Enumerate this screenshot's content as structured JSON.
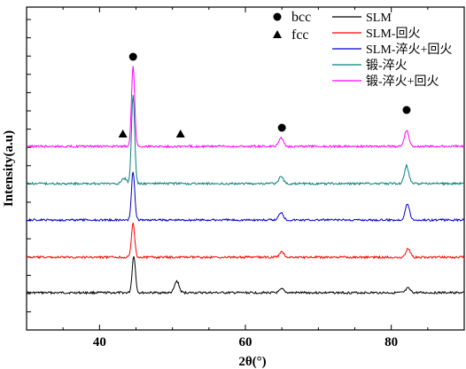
{
  "chart_data": {
    "type": "line",
    "title": "",
    "xlabel": "2θ(°)",
    "ylabel": "Intensity(a.u)",
    "xlim": [
      30,
      90
    ],
    "x_ticks": [
      40,
      60,
      80
    ],
    "grid": false,
    "legend_position": "top-right",
    "phase_legend": [
      {
        "symbol": "circle",
        "label": "bcc"
      },
      {
        "symbol": "triangle",
        "label": "fcc"
      }
    ],
    "series": [
      {
        "name": "SLM",
        "color": "#000000",
        "baseline": 0,
        "peaks": [
          {
            "x": 44.7,
            "height": 42
          },
          {
            "x": 50.6,
            "height": 13
          },
          {
            "x": 65.0,
            "height": 4
          },
          {
            "x": 82.3,
            "height": 5
          }
        ]
      },
      {
        "name": "SLM-回火",
        "color": "#ff0000",
        "baseline": 40,
        "peaks": [
          {
            "x": 44.6,
            "height": 38
          },
          {
            "x": 65.0,
            "height": 6
          },
          {
            "x": 82.3,
            "height": 10
          }
        ]
      },
      {
        "name": "SLM-淬火+回火",
        "color": "#0000cc",
        "baseline": 82,
        "peaks": [
          {
            "x": 44.6,
            "height": 55
          },
          {
            "x": 64.9,
            "height": 9
          },
          {
            "x": 82.2,
            "height": 18
          }
        ]
      },
      {
        "name": "锻-淬火",
        "color": "#008080",
        "baseline": 123,
        "peaks": [
          {
            "x": 44.6,
            "height": 100
          },
          {
            "x": 43.4,
            "height": 6
          },
          {
            "x": 64.9,
            "height": 8
          },
          {
            "x": 82.1,
            "height": 20
          }
        ]
      },
      {
        "name": "锻-淬火+回火",
        "color": "#ff00ff",
        "baseline": 165,
        "peaks": [
          {
            "x": 44.6,
            "height": 90
          },
          {
            "x": 64.9,
            "height": 10
          },
          {
            "x": 82.1,
            "height": 18
          }
        ]
      }
    ],
    "annotations": [
      {
        "symbol": "circle",
        "phase": "bcc",
        "x": 44.6
      },
      {
        "symbol": "circle",
        "phase": "bcc",
        "x": 65.0
      },
      {
        "symbol": "circle",
        "phase": "bcc",
        "x": 82.1
      },
      {
        "symbol": "triangle",
        "phase": "fcc",
        "x": 43.2
      },
      {
        "symbol": "triangle",
        "phase": "fcc",
        "x": 51.1
      }
    ]
  }
}
